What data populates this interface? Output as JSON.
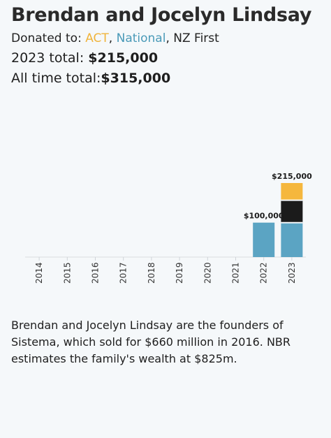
{
  "header": {
    "name": "Brendan and Jocelyn Lindsay",
    "donated_prefix": "Donated to: ",
    "parties": [
      {
        "label": "ACT",
        "color": "#f0b43c"
      },
      {
        "label": "National",
        "color": "#4a9ab8"
      },
      {
        "label": "NZ First",
        "color": "#1b1b1b"
      }
    ],
    "sep1": ", ",
    "sep2": ", ",
    "total_2023_label": "2023 total: ",
    "total_2023_value": "$215,000",
    "all_time_label": "All time total:",
    "all_time_value": "$315,000"
  },
  "chart_data": {
    "type": "bar",
    "stacked": true,
    "categories": [
      "2014",
      "2015",
      "2016",
      "2017",
      "2018",
      "2019",
      "2020",
      "2021",
      "2022",
      "2023"
    ],
    "series": [
      {
        "name": "National",
        "color": "#5ba4c3",
        "values": [
          0,
          0,
          0,
          0,
          0,
          0,
          0,
          0,
          100000,
          100000
        ]
      },
      {
        "name": "NZ First",
        "color": "#1b1b1b",
        "values": [
          0,
          0,
          0,
          0,
          0,
          0,
          0,
          0,
          0,
          65000
        ]
      },
      {
        "name": "ACT",
        "color": "#f5b73d",
        "values": [
          0,
          0,
          0,
          0,
          0,
          0,
          0,
          0,
          0,
          50000
        ]
      }
    ],
    "data_labels": [
      {
        "category": "2022",
        "text": "$100,000"
      },
      {
        "category": "2023",
        "text": "$215,000"
      }
    ],
    "ylim": [
      0,
      215000
    ],
    "grid": false
  },
  "description": "Brendan and Jocelyn Lindsay are the founders of Sistema, which sold for $660 million in 2016. NBR estimates the family's wealth at $825m."
}
